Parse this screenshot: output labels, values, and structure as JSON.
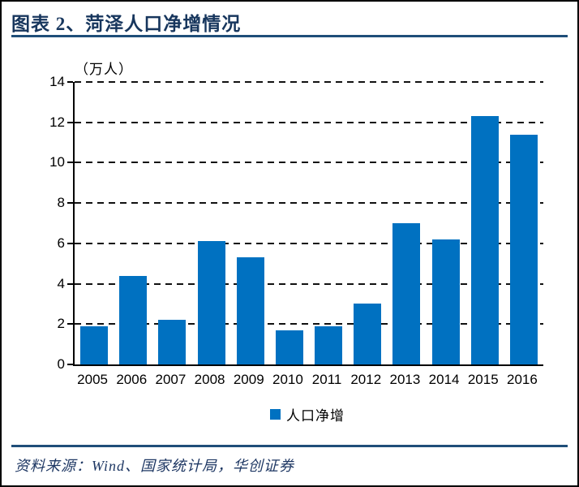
{
  "figure": {
    "title": "图表 2、菏泽人口净增情况",
    "source": "资料来源：Wind、国家统计局，华创证券"
  },
  "colors": {
    "bar": "#0071C1",
    "title_text": "#17365D",
    "rule": "#1F4E79",
    "source_text": "#1F3864",
    "axis": "#000000"
  },
  "chart_data": {
    "type": "bar",
    "title": "菏泽人口净增情况",
    "unit_label": "（万人）",
    "categories": [
      "2005",
      "2006",
      "2007",
      "2008",
      "2009",
      "2010",
      "2011",
      "2012",
      "2013",
      "2014",
      "2015",
      "2016"
    ],
    "series": [
      {
        "name": "人口净增",
        "values": [
          1.9,
          4.4,
          2.2,
          6.1,
          5.3,
          1.7,
          1.9,
          3.0,
          7.0,
          6.2,
          12.3,
          11.4
        ]
      }
    ],
    "xlabel": "",
    "ylabel": "（万人）",
    "ylim": [
      0,
      14
    ],
    "yticks": [
      0,
      2,
      4,
      6,
      8,
      10,
      12,
      14
    ],
    "grid": "horizontal-dashed",
    "legend_position": "bottom",
    "legend": [
      "人口净增"
    ]
  }
}
